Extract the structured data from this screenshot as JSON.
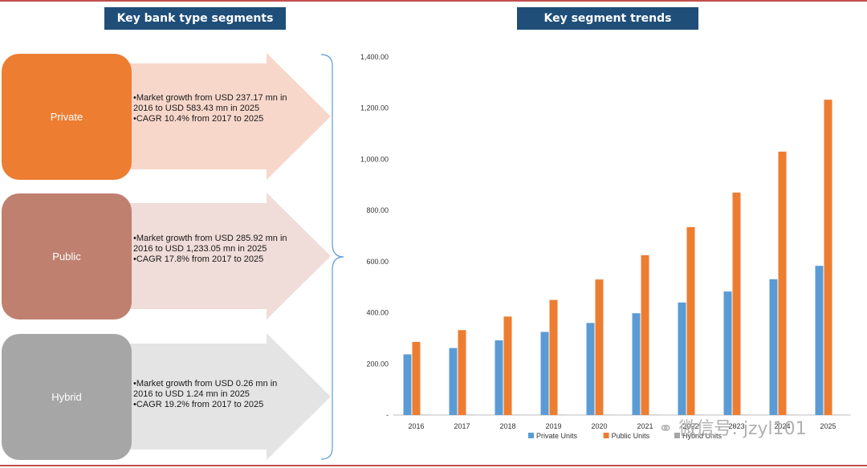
{
  "headers": {
    "left": "Key bank type segments",
    "right": "Key segment trends"
  },
  "segments": [
    {
      "name": "Private",
      "color": "#ed7d31",
      "arrow_color": "#f8d7cb",
      "bullets": [
        "•Market growth from USD 237.17 mn in 2016 to USD 583.43 mn in 2025",
        "•CAGR 10.4% from 2017 to 2025"
      ]
    },
    {
      "name": "Public",
      "color": "#c0806f",
      "arrow_color": "#f0dcd8",
      "bullets": [
        "•Market growth from USD 285.92 mn in 2016 to USD 1,233.05  mn in 2025",
        "•CAGR 17.8% from 2017 to 2025"
      ]
    },
    {
      "name": "Hybrid",
      "color": "#a6a6a6",
      "arrow_color": "#e4e4e4",
      "bullets": [
        "•Market growth from USD 0.26  mn in 2016 to USD 1.24  mn in 2025",
        "•CAGR 19.2% from 2017 to 2025"
      ]
    }
  ],
  "watermark": "微信号: jzyl101",
  "chart_data": {
    "type": "bar",
    "categories": [
      "2016",
      "2017",
      "2018",
      "2019",
      "2020",
      "2021",
      "2022",
      "2023",
      "2024",
      "2025"
    ],
    "series": [
      {
        "name": "Private Units",
        "color": "#5b9bd5",
        "values": [
          237.17,
          262,
          292,
          325,
          360,
          398,
          440,
          483,
          531,
          583.43
        ]
      },
      {
        "name": "Public Units",
        "color": "#ed7d31",
        "values": [
          285.92,
          332,
          385,
          450,
          530,
          625,
          735,
          870,
          1030,
          1233.05
        ]
      },
      {
        "name": "Hybrid Units",
        "color": "#a5a5a5",
        "values": [
          0.26,
          0.31,
          0.37,
          0.45,
          0.54,
          0.64,
          0.76,
          0.89,
          1.05,
          1.24
        ]
      }
    ],
    "ylim": [
      0,
      1400
    ],
    "yticks": [
      "-",
      "200.00",
      "400.00",
      "600.00",
      "800.00",
      "1,000.00",
      "1,200.00",
      "1,400.00"
    ],
    "legend_position": "bottom",
    "grid": false
  }
}
